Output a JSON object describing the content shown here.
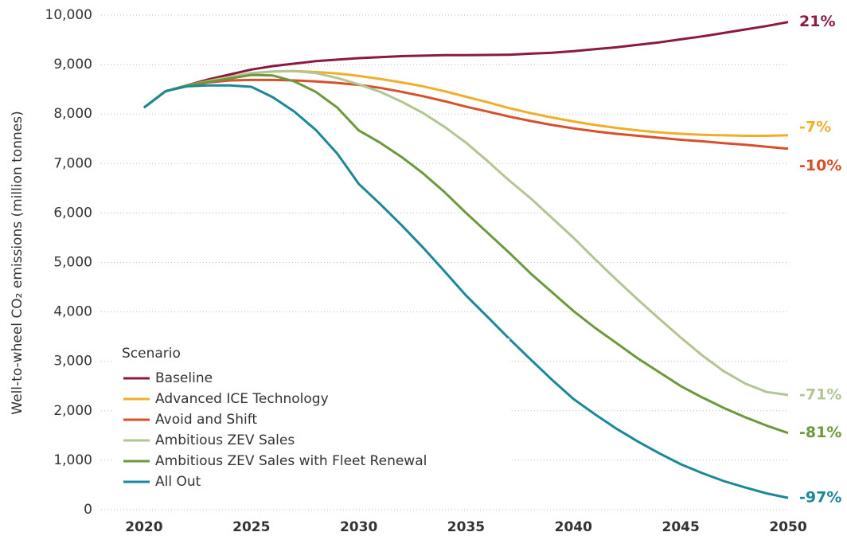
{
  "chart_data": {
    "type": "line",
    "ylabel": "Well-to-wheel CO₂ emissions (million tonnes)",
    "legend_title": "Scenario",
    "legend": "lower left",
    "grid": true,
    "xlim": [
      2018,
      2050
    ],
    "xticks": [
      2020,
      2025,
      2030,
      2035,
      2040,
      2045,
      2050
    ],
    "ylim": [
      0,
      10000
    ],
    "yticks": [
      0,
      {
        "value": 1000,
        "label": "1,000"
      },
      {
        "value": 2000,
        "label": "2,000"
      },
      {
        "value": 3000,
        "label": "3,000"
      },
      {
        "value": 4000,
        "label": "4,000"
      },
      {
        "value": 5000,
        "label": "5,000"
      },
      {
        "value": 6000,
        "label": "6,000"
      },
      {
        "value": 7000,
        "label": "7,000"
      },
      {
        "value": 8000,
        "label": "8,000"
      },
      {
        "value": 9000,
        "label": "9,000"
      },
      {
        "value": 10000,
        "label": "10,000"
      }
    ],
    "x": [
      2020,
      2021,
      2022,
      2023,
      2024,
      2025,
      2026,
      2027,
      2028,
      2029,
      2030,
      2031,
      2032,
      2033,
      2034,
      2035,
      2036,
      2037,
      2038,
      2039,
      2040,
      2041,
      2042,
      2043,
      2044,
      2045,
      2046,
      2047,
      2048,
      2049,
      2050
    ],
    "series": [
      {
        "name": "Baseline",
        "color": "#8b1a42",
        "end_label": "21%",
        "values": [
          8130,
          8460,
          8580,
          8700,
          8800,
          8900,
          8970,
          9020,
          9070,
          9100,
          9130,
          9150,
          9170,
          9180,
          9190,
          9190,
          9195,
          9200,
          9220,
          9240,
          9270,
          9310,
          9350,
          9400,
          9450,
          9510,
          9570,
          9640,
          9710,
          9780,
          9860
        ]
      },
      {
        "name": "Advanced ICE Technology",
        "color": "#f2ae2a",
        "end_label": "-7%",
        "values": [
          8130,
          8460,
          8580,
          8670,
          8750,
          8820,
          8860,
          8870,
          8850,
          8820,
          8770,
          8710,
          8640,
          8560,
          8460,
          8350,
          8240,
          8120,
          8020,
          7930,
          7850,
          7780,
          7720,
          7670,
          7630,
          7600,
          7580,
          7570,
          7560,
          7560,
          7570
        ]
      },
      {
        "name": "Avoid and Shift",
        "color": "#d6502c",
        "end_label": "-10%",
        "values": [
          8130,
          8460,
          8580,
          8640,
          8680,
          8690,
          8690,
          8680,
          8660,
          8630,
          8590,
          8530,
          8450,
          8360,
          8260,
          8150,
          8050,
          7950,
          7860,
          7780,
          7710,
          7650,
          7600,
          7560,
          7520,
          7480,
          7450,
          7410,
          7380,
          7340,
          7300
        ]
      },
      {
        "name": "Ambitious ZEV Sales",
        "color": "#b2c592",
        "end_label": "-71%",
        "values": [
          8130,
          8460,
          8580,
          8660,
          8750,
          8830,
          8860,
          8870,
          8830,
          8730,
          8600,
          8450,
          8250,
          8020,
          7740,
          7420,
          7050,
          6660,
          6300,
          5900,
          5500,
          5070,
          4650,
          4250,
          3860,
          3480,
          3120,
          2800,
          2550,
          2380,
          2320
        ]
      },
      {
        "name": "Ambitious ZEV Sales with Fleet Renewal",
        "color": "#6b993c",
        "end_label": "-81%",
        "values": [
          8130,
          8460,
          8580,
          8650,
          8720,
          8790,
          8780,
          8660,
          8450,
          8130,
          7670,
          7420,
          7130,
          6800,
          6420,
          6000,
          5600,
          5200,
          4780,
          4400,
          4020,
          3680,
          3370,
          3060,
          2780,
          2500,
          2270,
          2060,
          1870,
          1700,
          1550
        ]
      },
      {
        "name": "All Out",
        "color": "#1b8898",
        "end_label": "-97%",
        "values": [
          8130,
          8460,
          8560,
          8580,
          8580,
          8550,
          8340,
          8050,
          7680,
          7200,
          6590,
          6180,
          5750,
          5300,
          4820,
          4330,
          3900,
          3460,
          3040,
          2630,
          2240,
          1930,
          1640,
          1380,
          1140,
          920,
          740,
          580,
          450,
          330,
          240
        ]
      }
    ]
  }
}
